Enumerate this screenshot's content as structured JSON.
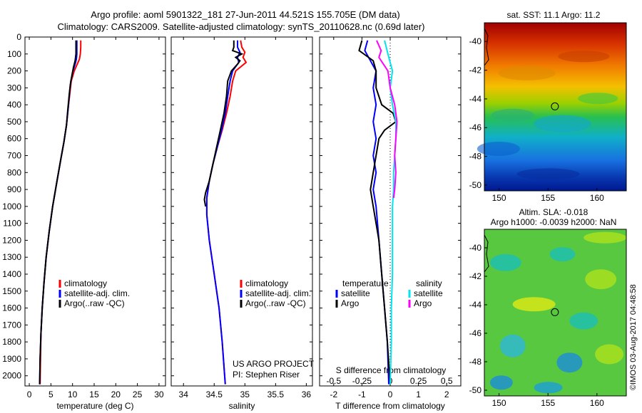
{
  "header": {
    "line1": "Argo profile: aoml 5901322_181 27-Jun-2011 44.521S 155.705E (DM data)",
    "line2": "Climatology: CARS2009. Satellite-adjusted climatology: synTS_20110628.nc (0.69d later)"
  },
  "colors": {
    "climatology": "#ff0000",
    "satellite": "#0000ff",
    "argo": "#000000",
    "salinity_satellite": "#00e5ee",
    "salinity_argo": "#ff00ff"
  },
  "depth_ticks": [
    0,
    100,
    200,
    300,
    400,
    500,
    600,
    700,
    800,
    900,
    1000,
    1100,
    1200,
    1300,
    1400,
    1500,
    1600,
    1700,
    1800,
    1900,
    2000
  ],
  "chart_data": [
    {
      "type": "line",
      "id": "temperature",
      "xlabel": "temperature (deg C)",
      "xlim": [
        -1,
        31.5
      ],
      "ylim": [
        2060,
        0
      ],
      "xticks": [
        "0",
        "5",
        "10",
        "15",
        "20",
        "25",
        "30"
      ],
      "legend": [
        "climatology",
        "satellite-adj. clim.",
        "Argo(..raw -QC)"
      ],
      "series": [
        {
          "name": "climatology",
          "depth": [
            20,
            60,
            100,
            130,
            160,
            200,
            260,
            330,
            420,
            520,
            620,
            720,
            850,
            1000,
            1150,
            1300,
            1450,
            1600,
            1750,
            1900,
            2050
          ],
          "values": [
            11.9,
            11.9,
            11.8,
            11.6,
            11.1,
            10.4,
            9.7,
            9.4,
            9.0,
            8.6,
            8.0,
            7.3,
            6.4,
            5.4,
            4.6,
            3.9,
            3.4,
            3.0,
            2.7,
            2.6,
            2.5
          ]
        },
        {
          "name": "satellite-adj. clim.",
          "depth": [
            20,
            60,
            100,
            130,
            160,
            200,
            260,
            330,
            420,
            520,
            620,
            720,
            850,
            1000,
            1150,
            1300,
            1450,
            1600,
            1750,
            1900,
            2050
          ],
          "values": [
            11.0,
            11.0,
            11.0,
            10.9,
            10.6,
            10.1,
            9.6,
            9.3,
            9.0,
            8.6,
            8.0,
            7.3,
            6.4,
            5.4,
            4.6,
            3.9,
            3.4,
            3.0,
            2.7,
            2.5,
            2.4
          ]
        },
        {
          "name": "Argo(..raw -QC)",
          "depth": [
            20,
            60,
            100,
            140,
            180,
            220,
            280,
            350,
            430,
            520,
            620,
            720,
            850,
            1000,
            1150,
            1300,
            1450,
            1600,
            1750,
            1900,
            2050
          ],
          "values": [
            10.8,
            10.8,
            10.8,
            10.6,
            10.2,
            9.9,
            9.5,
            9.2,
            8.9,
            8.6,
            8.0,
            7.3,
            6.4,
            5.4,
            4.6,
            3.9,
            3.4,
            3.0,
            2.7,
            2.5,
            2.4
          ]
        }
      ]
    },
    {
      "type": "line",
      "id": "salinity",
      "xlabel": "salinity",
      "xlim": [
        33.8,
        36.1
      ],
      "ylim": [
        2060,
        0
      ],
      "xticks": [
        "34",
        "34.5",
        "35",
        "35.5",
        "36"
      ],
      "legend": [
        "climatology",
        "satellite-adj. clim.",
        "Argo(..raw -QC)"
      ],
      "annotation": [
        "US ARGO PROJECT",
        "PI: Stephen Riser"
      ],
      "series": [
        {
          "name": "climatology",
          "depth": [
            20,
            60,
            90,
            120,
            150,
            200,
            260,
            350,
            450,
            550,
            650,
            750,
            850,
            950,
            1050,
            1200,
            1400,
            1600,
            1800,
            2050
          ],
          "values": [
            34.93,
            34.95,
            35.0,
            34.97,
            35.02,
            34.85,
            34.8,
            34.76,
            34.7,
            34.63,
            34.55,
            34.48,
            34.42,
            34.38,
            34.38,
            34.42,
            34.5,
            34.58,
            34.63,
            34.68
          ]
        },
        {
          "name": "satellite-adj. clim.",
          "depth": [
            20,
            60,
            90,
            120,
            150,
            200,
            260,
            350,
            450,
            550,
            650,
            750,
            850,
            950,
            1050,
            1200,
            1400,
            1600,
            1800,
            2050
          ],
          "values": [
            34.88,
            34.88,
            34.92,
            34.88,
            34.9,
            34.8,
            34.76,
            34.72,
            34.68,
            34.62,
            34.55,
            34.48,
            34.42,
            34.38,
            34.38,
            34.42,
            34.5,
            34.58,
            34.63,
            34.68
          ]
        },
        {
          "name": "Argo(..raw -QC)",
          "depth": [
            20,
            60,
            80,
            100,
            120,
            140,
            160,
            200,
            260,
            350,
            450,
            550,
            650,
            750,
            850,
            920,
            960,
            1000
          ],
          "values": [
            34.82,
            34.82,
            34.8,
            34.95,
            34.85,
            34.92,
            34.88,
            34.78,
            34.72,
            34.7,
            34.66,
            34.6,
            34.54,
            34.48,
            34.42,
            34.36,
            34.34,
            34.36
          ]
        }
      ]
    },
    {
      "type": "line",
      "id": "difference",
      "xlabel": "T difference from climatology",
      "xlabel_top": "S difference from climatology",
      "xlim": [
        -2.5,
        2.5
      ],
      "ylim": [
        2060,
        0
      ],
      "xticks": [
        "-2",
        "-1",
        "0",
        "1",
        "2"
      ],
      "xticks_top": [
        "-0.5",
        "-0.25",
        "0",
        "0.25",
        "0.5"
      ],
      "legend_temperature": [
        "temperature",
        "satellite",
        "Argo"
      ],
      "legend_salinity": [
        "salinity",
        "satellite",
        "Argo"
      ],
      "series": [
        {
          "name": "satellite",
          "depth": [
            20,
            80,
            140,
            200,
            300,
            400,
            500,
            600,
            700,
            800,
            900,
            1000,
            1200,
            1400,
            1600,
            1800,
            2050
          ],
          "values": [
            -0.8,
            -0.9,
            -0.7,
            -0.5,
            -0.6,
            -0.5,
            -0.6,
            -0.5,
            -0.6,
            -0.5,
            -0.6,
            -0.5,
            -0.4,
            -0.3,
            -0.2,
            -0.1,
            -0.05
          ]
        },
        {
          "name": "Argo",
          "depth": [
            20,
            80,
            140,
            200,
            300,
            400,
            450,
            500,
            550,
            600,
            700,
            800,
            900,
            1000,
            1200,
            1400,
            1600,
            1800,
            2050
          ],
          "values": [
            -1.0,
            -1.1,
            -0.6,
            -0.5,
            -0.5,
            -0.3,
            0.1,
            0.2,
            -0.2,
            -0.4,
            -0.5,
            -0.6,
            -0.7,
            -0.6,
            -0.4,
            -0.3,
            -0.2,
            -0.1,
            0.0
          ]
        },
        {
          "name": "salinity satellite",
          "depth": [
            20,
            100,
            200,
            300,
            400,
            500,
            600,
            700,
            800,
            900,
            1000,
            1200,
            1400,
            1600,
            1800,
            2050
          ],
          "values": [
            -0.05,
            -0.02,
            0.02,
            0.0,
            0.02,
            0.05,
            0.05,
            0.04,
            0.03,
            0.03,
            0.02,
            0.02,
            0.02,
            0.01,
            0.01,
            0.0
          ]
        },
        {
          "name": "salinity Argo",
          "depth": [
            20,
            80,
            120,
            200,
            300,
            400,
            500,
            600,
            700,
            800,
            900,
            950
          ],
          "values": [
            -0.12,
            -0.08,
            -0.1,
            -0.02,
            0.0,
            0.04,
            0.06,
            0.05,
            0.04,
            0.05,
            0.04,
            0.03
          ]
        }
      ]
    },
    {
      "type": "heatmap",
      "id": "sst_map",
      "title": "sat. SST: 11.1  Argo: 11.2",
      "xticks": [
        "150",
        "155",
        "160"
      ],
      "yticks": [
        "-40",
        "-42",
        "-44",
        "-46",
        "-48",
        "-50"
      ],
      "xlim": [
        148.5,
        163.0
      ],
      "ylim": [
        -50.4,
        -38.7
      ],
      "marker": {
        "lon": 155.705,
        "lat": -44.521
      }
    },
    {
      "type": "heatmap",
      "id": "sla_map",
      "title1": "Altim. SLA: -0.018",
      "title2": "Argo h1000: -0.0039 h2000: NaN",
      "xticks": [
        "150",
        "155",
        "160"
      ],
      "yticks": [
        "-40",
        "-42",
        "-44",
        "-46",
        "-48",
        "-50"
      ],
      "xlim": [
        148.5,
        163.0
      ],
      "ylim": [
        -50.4,
        -38.7
      ],
      "marker": {
        "lon": 155.705,
        "lat": -44.521
      }
    }
  ],
  "stamp": "©IMOS 03-Aug-2017 04:48:58"
}
